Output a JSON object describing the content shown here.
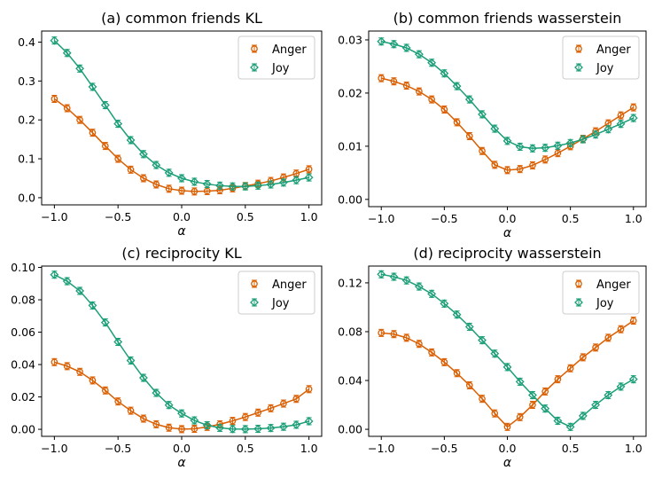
{
  "colors": {
    "anger": "#d95f02",
    "joy": "#1b9e77"
  },
  "chart_data": [
    {
      "type": "line",
      "title": "(a) common friends KL",
      "xlabel": "α",
      "ylabel": "",
      "xlim": [
        -1.0,
        1.0
      ],
      "ylim": [
        0.0,
        0.41
      ],
      "xticks": [
        -1.0,
        -0.5,
        0.0,
        0.5,
        1.0
      ],
      "xtick_labels": [
        "−1.0",
        "−0.5",
        "0.0",
        "0.5",
        "1.0"
      ],
      "yticks": [
        0.0,
        0.1,
        0.2,
        0.3,
        0.4
      ],
      "ytick_labels": [
        "0.0",
        "0.1",
        "0.2",
        "0.3",
        "0.4"
      ],
      "legend": "top-right",
      "x": [
        -1.0,
        -0.9,
        -0.8,
        -0.7,
        -0.6,
        -0.5,
        -0.4,
        -0.3,
        -0.2,
        -0.1,
        0.0,
        0.1,
        0.2,
        0.3,
        0.4,
        0.5,
        0.6,
        0.7,
        0.8,
        0.9,
        1.0
      ],
      "series": [
        {
          "name": "Anger",
          "values": [
            0.254,
            0.23,
            0.2,
            0.167,
            0.133,
            0.1,
            0.072,
            0.05,
            0.034,
            0.023,
            0.018,
            0.016,
            0.017,
            0.019,
            0.024,
            0.03,
            0.036,
            0.043,
            0.052,
            0.062,
            0.073
          ]
        },
        {
          "name": "Joy",
          "values": [
            0.404,
            0.372,
            0.332,
            0.285,
            0.238,
            0.19,
            0.148,
            0.112,
            0.084,
            0.064,
            0.05,
            0.041,
            0.035,
            0.031,
            0.029,
            0.029,
            0.031,
            0.034,
            0.039,
            0.045,
            0.052
          ]
        }
      ]
    },
    {
      "type": "line",
      "title": "(b) common friends wasserstein",
      "xlabel": "α",
      "ylabel": "",
      "xlim": [
        -1.0,
        1.0
      ],
      "ylim": [
        0.0,
        0.0303
      ],
      "xticks": [
        -1.0,
        -0.5,
        0.0,
        0.5,
        1.0
      ],
      "xtick_labels": [
        "−1.0",
        "−0.5",
        "0.0",
        "0.5",
        "1.0"
      ],
      "yticks": [
        0.0,
        0.01,
        0.02,
        0.03
      ],
      "ytick_labels": [
        "0.00",
        "0.01",
        "0.02",
        "0.03"
      ],
      "legend": "top-right",
      "x": [
        -1.0,
        -0.9,
        -0.8,
        -0.7,
        -0.6,
        -0.5,
        -0.4,
        -0.3,
        -0.2,
        -0.1,
        0.0,
        0.1,
        0.2,
        0.3,
        0.4,
        0.5,
        0.6,
        0.7,
        0.8,
        0.9,
        1.0
      ],
      "series": [
        {
          "name": "Anger",
          "values": [
            0.0228,
            0.0222,
            0.0214,
            0.0203,
            0.0188,
            0.0169,
            0.0145,
            0.0119,
            0.0091,
            0.0065,
            0.0055,
            0.0057,
            0.0064,
            0.0075,
            0.0087,
            0.01,
            0.0114,
            0.0128,
            0.0143,
            0.0158,
            0.0173
          ]
        },
        {
          "name": "Joy",
          "values": [
            0.0297,
            0.0292,
            0.0285,
            0.0273,
            0.0257,
            0.0237,
            0.0213,
            0.0188,
            0.016,
            0.0133,
            0.011,
            0.0099,
            0.0096,
            0.0097,
            0.0101,
            0.0106,
            0.0113,
            0.0122,
            0.0132,
            0.0142,
            0.0153
          ]
        }
      ]
    },
    {
      "type": "line",
      "title": "(c) reciprocity KL",
      "xlabel": "α",
      "ylabel": "",
      "xlim": [
        -1.0,
        1.0
      ],
      "ylim": [
        0.0,
        0.0965
      ],
      "xticks": [
        -1.0,
        -0.5,
        0.0,
        0.5,
        1.0
      ],
      "xtick_labels": [
        "−1.0",
        "−0.5",
        "0.0",
        "0.5",
        "1.0"
      ],
      "yticks": [
        0.0,
        0.02,
        0.04,
        0.06,
        0.08,
        0.1
      ],
      "ytick_labels": [
        "0.00",
        "0.02",
        "0.04",
        "0.06",
        "0.08",
        "0.10"
      ],
      "legend": "top-right",
      "x": [
        -1.0,
        -0.9,
        -0.8,
        -0.7,
        -0.6,
        -0.5,
        -0.4,
        -0.3,
        -0.2,
        -0.1,
        0.0,
        0.1,
        0.2,
        0.3,
        0.4,
        0.5,
        0.6,
        0.7,
        0.8,
        0.9,
        1.0
      ],
      "series": [
        {
          "name": "Anger",
          "values": [
            0.0415,
            0.039,
            0.0355,
            0.0302,
            0.024,
            0.0172,
            0.0115,
            0.0066,
            0.0031,
            0.001,
            0.0001,
            0.0003,
            0.0015,
            0.0031,
            0.0052,
            0.0076,
            0.0103,
            0.013,
            0.0159,
            0.0188,
            0.0248
          ]
        },
        {
          "name": "Joy",
          "values": [
            0.0955,
            0.0915,
            0.0855,
            0.0765,
            0.066,
            0.054,
            0.0425,
            0.0318,
            0.0225,
            0.015,
            0.0098,
            0.0055,
            0.0025,
            0.0009,
            0.0002,
            0.0001,
            0.0003,
            0.0008,
            0.0016,
            0.0028,
            0.005
          ]
        }
      ]
    },
    {
      "type": "line",
      "title": "(d) reciprocity wasserstein",
      "xlabel": "α",
      "ylabel": "",
      "xlim": [
        -1.0,
        1.0
      ],
      "ylim": [
        0.0,
        0.128
      ],
      "xticks": [
        -1.0,
        -0.5,
        0.0,
        0.5,
        1.0
      ],
      "xtick_labels": [
        "−1.0",
        "−0.5",
        "0.0",
        "0.5",
        "1.0"
      ],
      "yticks": [
        0.0,
        0.04,
        0.08,
        0.12
      ],
      "ytick_labels": [
        "0.00",
        "0.04",
        "0.08",
        "0.12"
      ],
      "legend": "top-right",
      "x": [
        -1.0,
        -0.9,
        -0.8,
        -0.7,
        -0.6,
        -0.5,
        -0.4,
        -0.3,
        -0.2,
        -0.1,
        0.0,
        0.1,
        0.2,
        0.3,
        0.4,
        0.5,
        0.6,
        0.7,
        0.8,
        0.9,
        1.0
      ],
      "series": [
        {
          "name": "Anger",
          "values": [
            0.079,
            0.078,
            0.075,
            0.07,
            0.063,
            0.055,
            0.046,
            0.036,
            0.025,
            0.013,
            0.002,
            0.01,
            0.02,
            0.031,
            0.041,
            0.05,
            0.059,
            0.067,
            0.075,
            0.082,
            0.089
          ]
        },
        {
          "name": "Joy",
          "values": [
            0.127,
            0.125,
            0.122,
            0.117,
            0.111,
            0.103,
            0.094,
            0.084,
            0.073,
            0.062,
            0.051,
            0.039,
            0.028,
            0.017,
            0.007,
            0.002,
            0.011,
            0.02,
            0.028,
            0.035,
            0.041
          ]
        }
      ]
    }
  ]
}
